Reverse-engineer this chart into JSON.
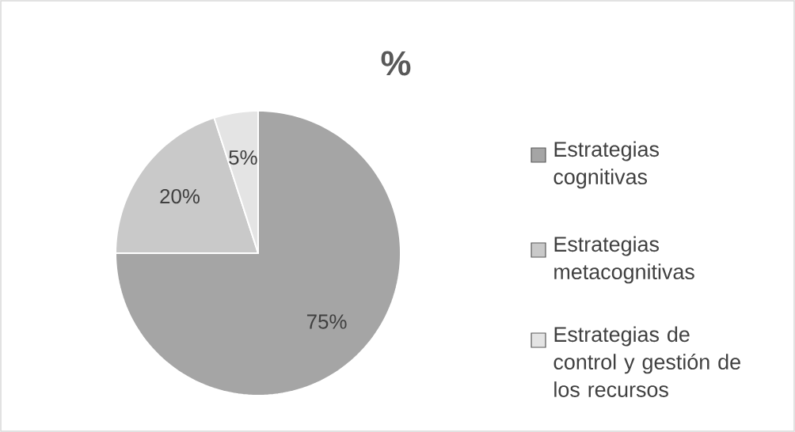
{
  "chart_data": {
    "type": "pie",
    "title": "%",
    "categories": [
      "Estrategias cognitivas",
      "Estrategias metacognitivas",
      "Estrategias de control y gestión de los recursos"
    ],
    "values": [
      75,
      20,
      5
    ],
    "colors": [
      "#a5a5a5",
      "#c9c9c9",
      "#e4e4e4"
    ],
    "value_labels": [
      "75%",
      "20%",
      "5%"
    ],
    "legend": "right"
  }
}
